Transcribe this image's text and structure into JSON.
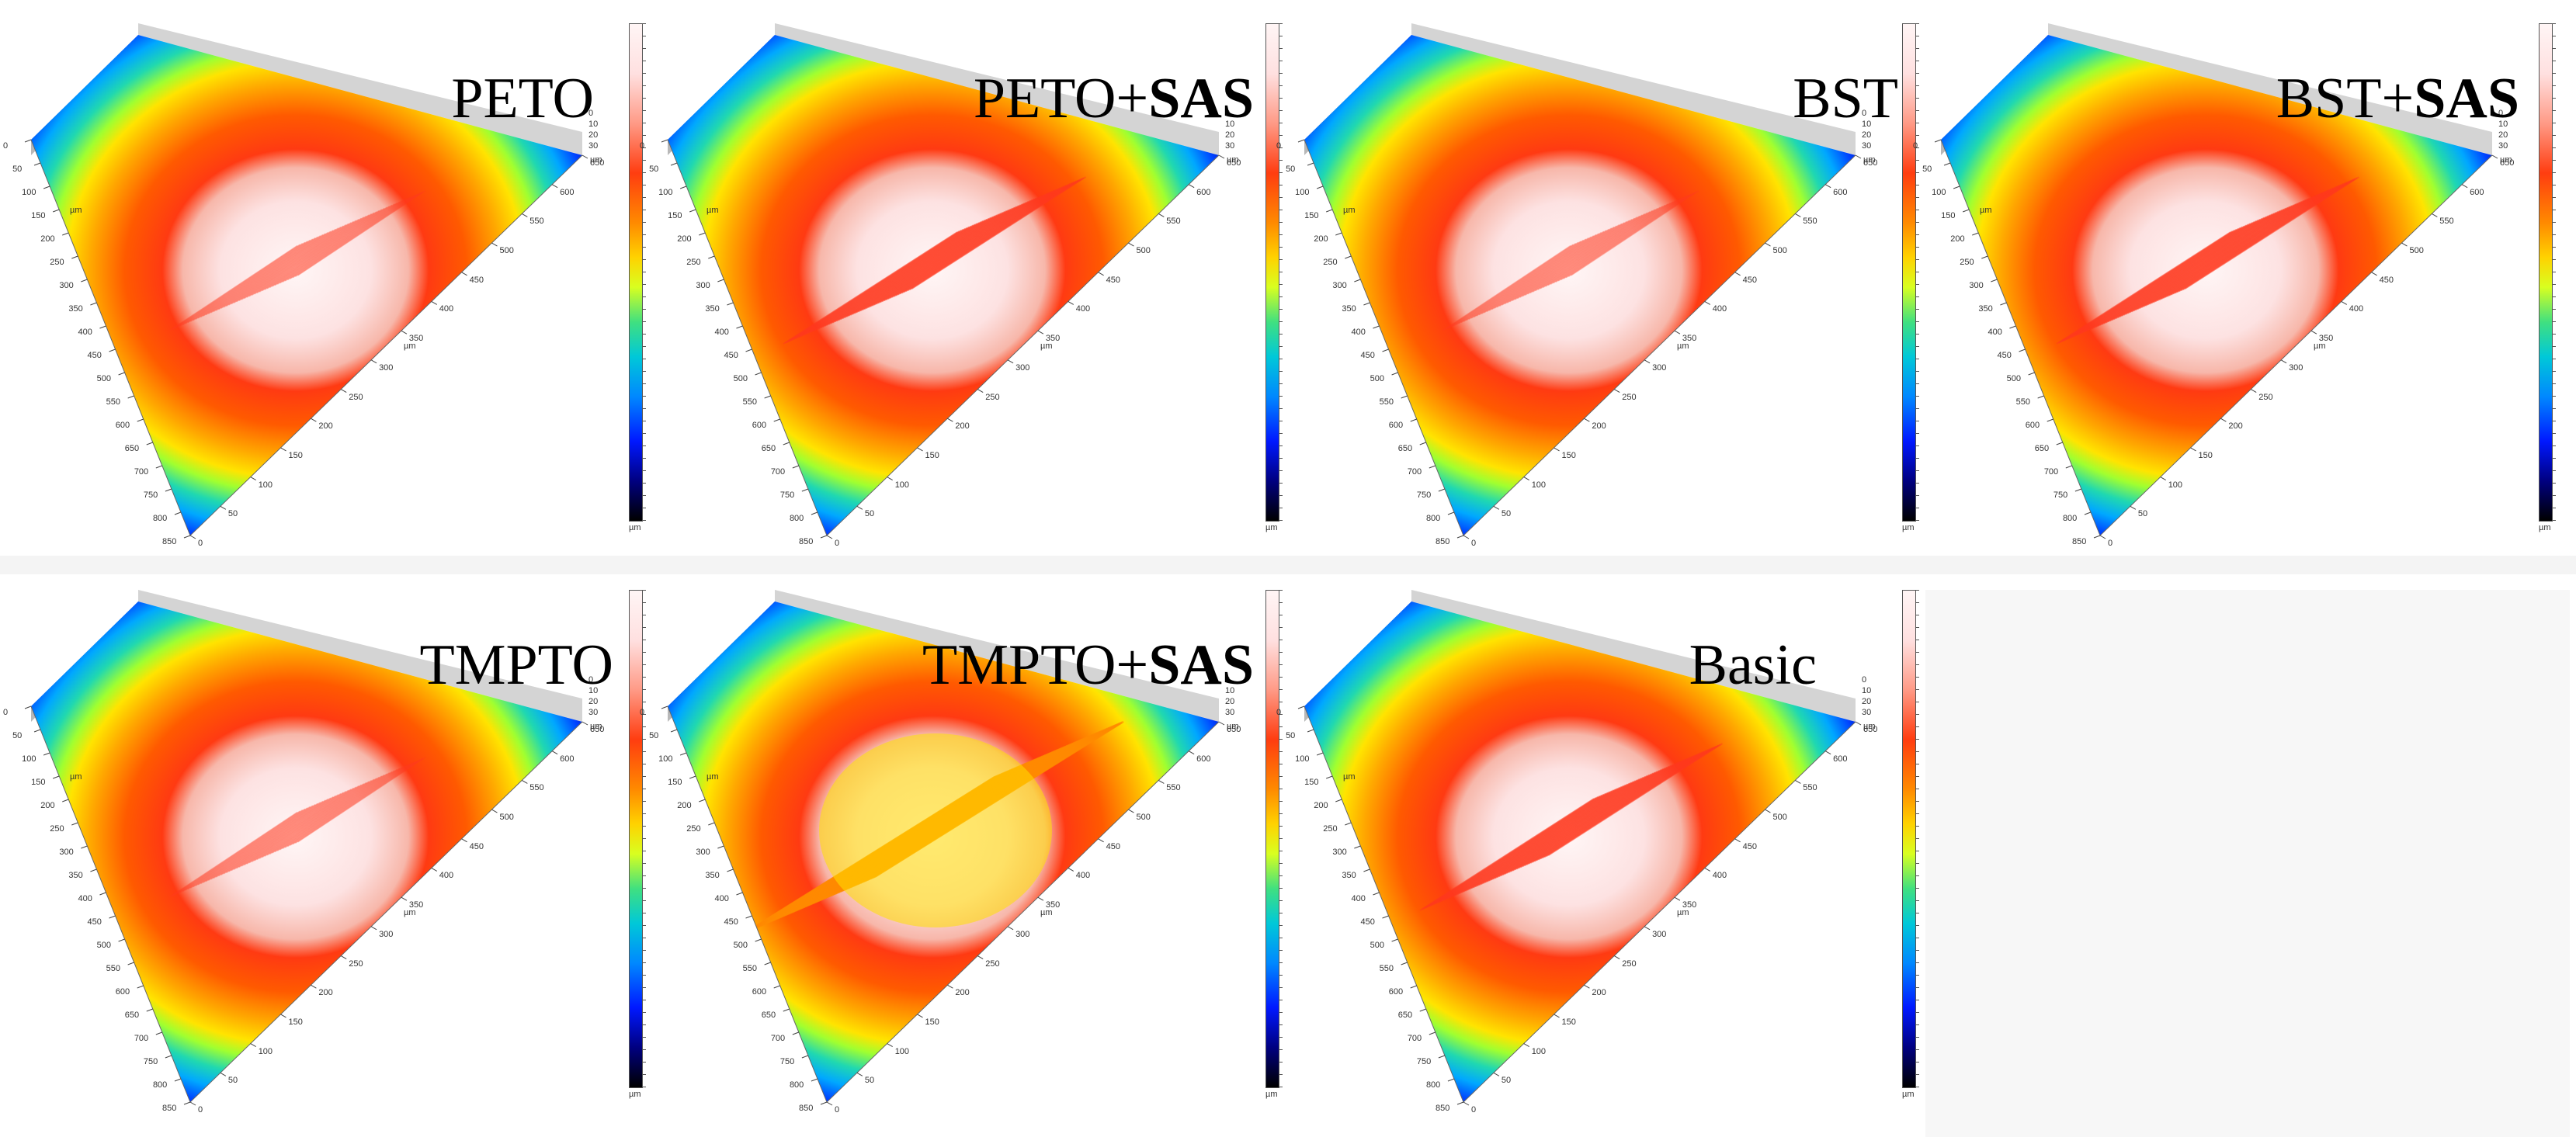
{
  "figure": {
    "panels": [
      {
        "id": "peto",
        "label": "PETO",
        "suffix": "",
        "wear": "light"
      },
      {
        "id": "peto-sas",
        "label": "PETO+",
        "suffix": "SAS",
        "wear": "medium"
      },
      {
        "id": "bst",
        "label": "BST",
        "suffix": "",
        "wear": "light"
      },
      {
        "id": "bst-sas",
        "label": "BST+",
        "suffix": "SAS",
        "wear": "medium"
      },
      {
        "id": "tmpto",
        "label": "TMPTO",
        "suffix": "",
        "wear": "light"
      },
      {
        "id": "tmpto-sas",
        "label": "TMPTO+",
        "suffix": "SAS",
        "wear": "heavy"
      },
      {
        "id": "basic",
        "label": "Basic",
        "suffix": "",
        "wear": "medium"
      }
    ],
    "axis": {
      "unit": "µm",
      "x_ticks": [
        "0",
        "50",
        "100",
        "150",
        "200",
        "250",
        "300",
        "350",
        "400",
        "450",
        "500",
        "550",
        "600",
        "650",
        "700",
        "750",
        "800",
        "850"
      ],
      "y_ticks": [
        "0",
        "50",
        "100",
        "150",
        "200",
        "250",
        "300",
        "350",
        "400",
        "450",
        "500",
        "550",
        "600",
        "650"
      ],
      "z_ticks": [
        "0",
        "10",
        "20",
        "30"
      ]
    },
    "colorbar": {
      "unit": "µm"
    },
    "colors": {
      "surface_high": "#ffffff",
      "surface_ring": "#ff3a10",
      "surface_low": "#0010ff",
      "wall": "#9a9a9a"
    }
  }
}
